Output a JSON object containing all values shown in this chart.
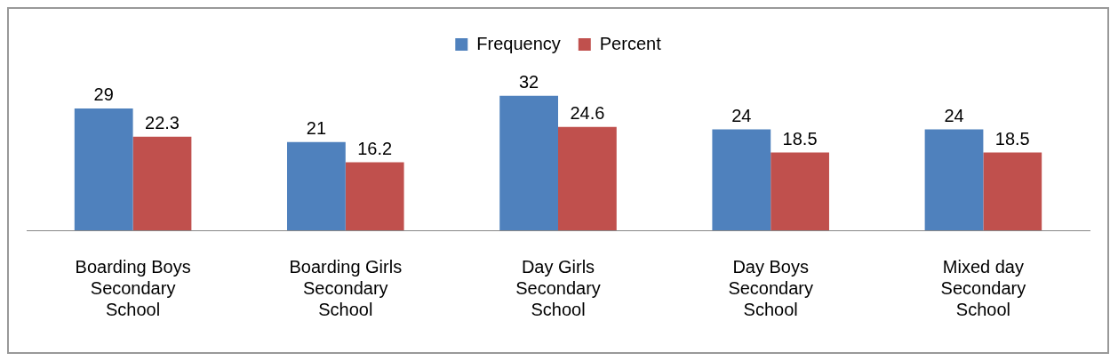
{
  "chart_data": {
    "type": "bar",
    "categories": [
      "Boarding Boys Secondary School",
      "Boarding Girls Secondary School",
      "Day Girls Secondary School",
      "Day Boys Secondary School",
      "Mixed day Secondary School"
    ],
    "series": [
      {
        "name": "Frequency",
        "color": "#4f81bd",
        "values": [
          29,
          21,
          32,
          24,
          24
        ]
      },
      {
        "name": "Percent",
        "color": "#c0504d",
        "values": [
          22.3,
          16.2,
          24.6,
          18.5,
          18.5
        ]
      }
    ],
    "data_labels": true,
    "legend": "top",
    "grid": false
  }
}
